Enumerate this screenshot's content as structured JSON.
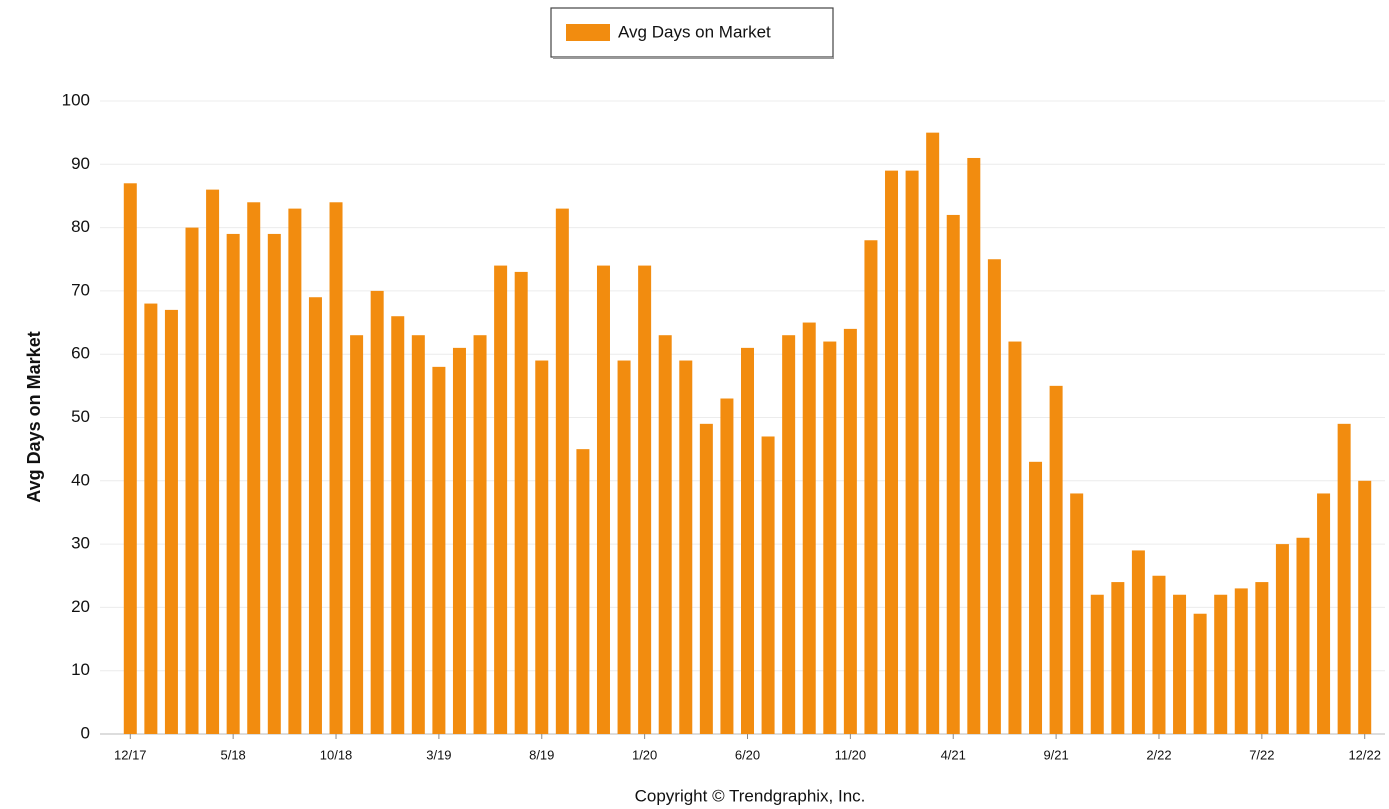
{
  "chart_data": {
    "type": "bar",
    "legend": "top",
    "source": "Copyright © Trendgraphix, Inc.",
    "ylabel": "Avg Days on Market",
    "categories": [
      "12/17",
      null,
      null,
      null,
      null,
      "5/18",
      null,
      null,
      null,
      null,
      "10/18",
      null,
      null,
      null,
      null,
      "3/19",
      null,
      null,
      null,
      null,
      "8/19",
      null,
      null,
      null,
      null,
      "1/20",
      null,
      null,
      null,
      null,
      "6/20",
      null,
      null,
      null,
      null,
      "11/20",
      null,
      null,
      null,
      null,
      "4/21",
      null,
      null,
      null,
      null,
      "9/21",
      null,
      null,
      null,
      null,
      "2/22",
      null,
      null,
      null,
      null,
      "7/22",
      null,
      null,
      null,
      null,
      "12/22"
    ],
    "series": [
      {
        "name": "Avg Days on Market",
        "color": "#f28c0f",
        "values": [
          87,
          68,
          67,
          80,
          86,
          79,
          84,
          79,
          83,
          69,
          84,
          63,
          70,
          66,
          63,
          58,
          61,
          63,
          74,
          73,
          59,
          83,
          45,
          74,
          59,
          74,
          63,
          59,
          49,
          53,
          61,
          47,
          63,
          65,
          62,
          64,
          78,
          89,
          89,
          95,
          82,
          91,
          75,
          62,
          43,
          55,
          38,
          22,
          24,
          29,
          25,
          22,
          19,
          22,
          23,
          24,
          30,
          31,
          38,
          49,
          40
        ]
      }
    ],
    "ylim": [
      0,
      100
    ],
    "yticks": [
      0,
      10,
      20,
      30,
      40,
      50,
      60,
      70,
      80,
      90,
      100
    ],
    "grid": true
  }
}
